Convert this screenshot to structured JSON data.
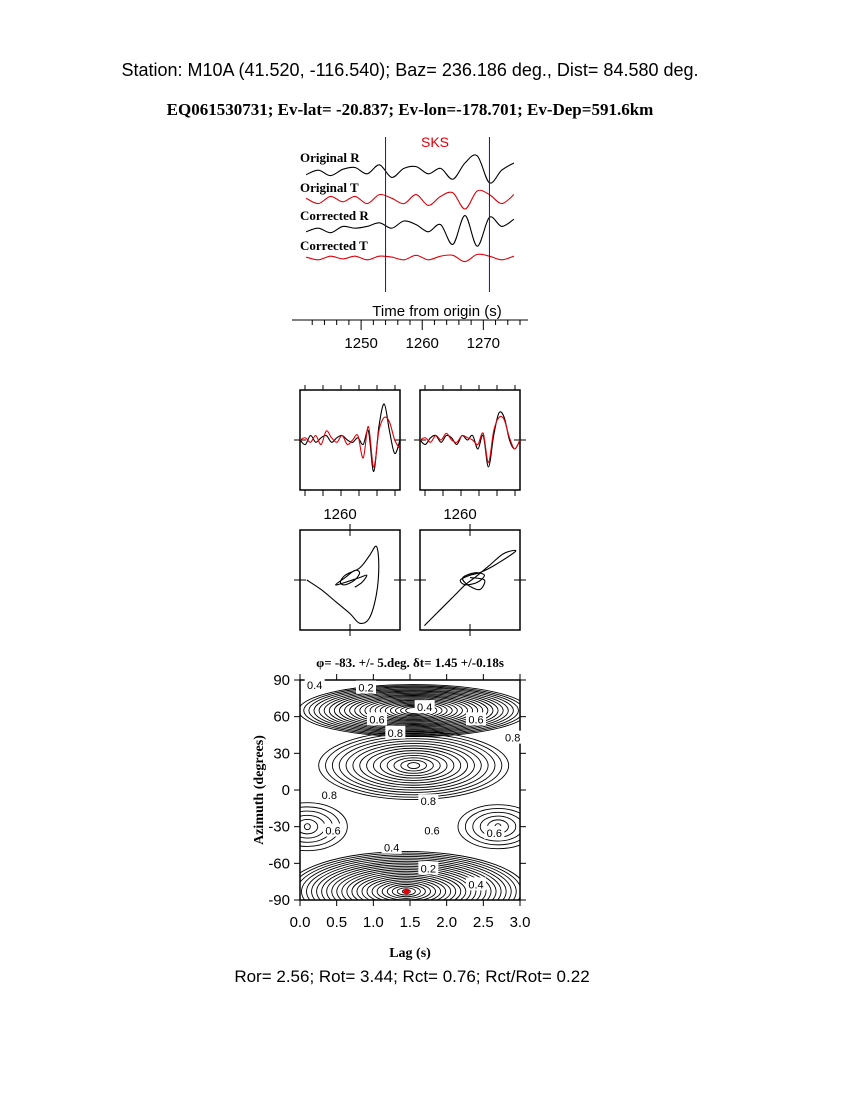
{
  "header": {
    "station_line": "Station: M10A (41.520, -116.540); Baz=  236.186 deg., Dist=   84.580 deg.",
    "event_line": "EQ061530731; Ev-lat= -20.837; Ev-lon=-178.701; Ev-Dep=591.6km"
  },
  "colors": {
    "radial": "#000000",
    "transverse": "#e0000a",
    "phase_marker": "#1010c0",
    "best_point": "#e0000a"
  },
  "chart_data": [
    {
      "type": "line",
      "panel": "seismograms",
      "phase_label": "SKS",
      "xlabel": "Time from origin (s)",
      "xticks": [
        "1250",
        "1260",
        "1270"
      ],
      "xlim": [
        1240,
        1276
      ],
      "window_markers": [
        1254,
        1271
      ],
      "series": [
        {
          "name": "Original R",
          "color": "#000000",
          "x": [
            1241,
            1243,
            1245,
            1247,
            1249,
            1251,
            1253,
            1255,
            1257,
            1259,
            1261,
            1263,
            1265,
            1267,
            1269,
            1271,
            1273,
            1275
          ],
          "y": [
            -0.15,
            0.1,
            -0.2,
            0.15,
            0.25,
            -0.1,
            0.4,
            -0.3,
            0.2,
            0.3,
            -0.1,
            0.2,
            -0.4,
            0.5,
            0.9,
            -0.6,
            0.1,
            0.5
          ]
        },
        {
          "name": "Original T",
          "color": "#e0000a",
          "x": [
            1241,
            1243,
            1245,
            1247,
            1249,
            1251,
            1253,
            1255,
            1257,
            1259,
            1261,
            1263,
            1265,
            1267,
            1269,
            1271,
            1273,
            1275
          ],
          "y": [
            0.1,
            -0.2,
            0.2,
            -0.1,
            0.2,
            -0.2,
            0.3,
            0.1,
            -0.2,
            0.3,
            -0.3,
            0.2,
            0.4,
            -0.5,
            0.5,
            0.3,
            -0.2,
            0.3
          ]
        },
        {
          "name": "Corrected R",
          "color": "#000000",
          "x": [
            1241,
            1243,
            1245,
            1247,
            1249,
            1251,
            1253,
            1255,
            1257,
            1259,
            1261,
            1263,
            1265,
            1267,
            1269,
            1271,
            1273,
            1275
          ],
          "y": [
            -0.1,
            0.1,
            -0.15,
            0.2,
            0.1,
            0.2,
            0.4,
            0.1,
            0.5,
            0.3,
            -0.1,
            0.3,
            -0.8,
            0.8,
            -0.9,
            0.7,
            0.2,
            0.6
          ]
        },
        {
          "name": "Corrected T",
          "color": "#e0000a",
          "x": [
            1241,
            1243,
            1245,
            1247,
            1249,
            1251,
            1253,
            1255,
            1257,
            1259,
            1261,
            1263,
            1265,
            1267,
            1269,
            1271,
            1273,
            1275
          ],
          "y": [
            0.05,
            -0.1,
            0.1,
            -0.05,
            0.1,
            -0.1,
            0.1,
            0.05,
            -0.1,
            0.15,
            -0.1,
            0.1,
            0.15,
            -0.2,
            0.2,
            0.1,
            -0.1,
            0.1
          ]
        }
      ]
    },
    {
      "type": "line",
      "panel": "waveform-before",
      "xticks": [
        "1260"
      ],
      "series": [
        {
          "name": "",
          "color": "#000000",
          "y": [
            0,
            -0.1,
            0.1,
            -0.05,
            0.05,
            0.1,
            -0.05,
            0.05,
            0.1,
            0,
            -0.05,
            0.05,
            -0.1,
            0.2,
            -0.7,
            0.3,
            0.8,
            0.2,
            -0.3,
            0
          ]
        },
        {
          "name": "",
          "color": "#e0000a",
          "y": [
            0,
            0.05,
            -0.05,
            0.1,
            -0.1,
            0.2,
            0.05,
            -0.05,
            0.1,
            -0.1,
            0,
            0.1,
            -0.4,
            0.3,
            -0.6,
            0.2,
            0.5,
            0.4,
            0,
            -0.2
          ]
        }
      ]
    },
    {
      "type": "line",
      "panel": "waveform-after",
      "xticks": [
        "1260"
      ],
      "series": [
        {
          "name": "",
          "color": "#000000",
          "y": [
            0,
            -0.1,
            0.05,
            0.1,
            -0.05,
            0.1,
            0.05,
            -0.1,
            0.1,
            0,
            0.1,
            -0.2,
            0.1,
            -0.6,
            0.1,
            0.6,
            0.5,
            0,
            -0.2,
            0
          ]
        },
        {
          "name": "",
          "color": "#e0000a",
          "y": [
            0,
            0.05,
            -0.05,
            0.1,
            0,
            0.15,
            0,
            -0.05,
            0.1,
            0.05,
            0,
            -0.1,
            0.15,
            -0.5,
            0.2,
            0.5,
            0.45,
            0.05,
            -0.2,
            0
          ]
        }
      ]
    },
    {
      "type": "scatter",
      "panel": "particle-motion-before",
      "x": [
        -0.9,
        -0.6,
        -0.3,
        0,
        0.2,
        0.4,
        0.55,
        0.6,
        0.55,
        0.4,
        0.2,
        -0.1,
        -0.2,
        -0.1,
        0.1,
        0.2,
        0.1,
        -0.1,
        -0.3,
        -0.1,
        0.2,
        0.35,
        0.25,
        0.1
      ],
      "y": [
        0.0,
        -0.2,
        -0.45,
        -0.7,
        -0.9,
        -0.8,
        -0.3,
        0.3,
        0.7,
        0.5,
        0.25,
        0.1,
        -0.05,
        -0.1,
        0,
        0.15,
        0.2,
        0.05,
        -0.1,
        -0.05,
        0.05,
        0.1,
        -0.05,
        -0.15
      ]
    },
    {
      "type": "scatter",
      "panel": "particle-motion-after",
      "x": [
        -0.95,
        -0.6,
        -0.3,
        -0.1,
        0.1,
        0.4,
        0.7,
        0.95,
        0.5,
        0.2,
        0.0,
        -0.2,
        -0.1,
        0.15,
        0.3,
        0.1,
        -0.15,
        -0.05,
        0.2,
        0.3,
        0.0
      ],
      "y": [
        -0.95,
        -0.6,
        -0.3,
        -0.1,
        0.05,
        0.3,
        0.55,
        0.6,
        0.3,
        0.15,
        0.1,
        0.0,
        -0.1,
        -0.05,
        0.1,
        0.15,
        0.05,
        -0.1,
        -0.2,
        0.0,
        0.05
      ]
    },
    {
      "type": "heatmap",
      "panel": "misfit-grid",
      "title": "φ= -83. +/- 5.deg. δt= 1.45 +/-0.18s",
      "xlabel": "Lag (s)",
      "ylabel": "Azimuth (degrees)",
      "xlim": [
        0,
        3
      ],
      "ylim": [
        -90,
        90
      ],
      "xticks": [
        "0.0",
        "0.5",
        "1.0",
        "1.5",
        "2.0",
        "2.5",
        "3.0"
      ],
      "yticks": [
        "90",
        "60",
        "30",
        "0",
        "-30",
        "-60",
        "-90"
      ],
      "best_point": {
        "x": 1.45,
        "y": -83
      },
      "contour_labels": [
        {
          "text": "0.4",
          "x": 0.2,
          "y": 85
        },
        {
          "text": "0.2",
          "x": 0.9,
          "y": 83
        },
        {
          "text": "0.4",
          "x": 1.7,
          "y": 67
        },
        {
          "text": "0.6",
          "x": 1.05,
          "y": 57
        },
        {
          "text": "0.6",
          "x": 2.4,
          "y": 57
        },
        {
          "text": "0.8",
          "x": 1.3,
          "y": 46
        },
        {
          "text": "0.8",
          "x": 2.9,
          "y": 42
        },
        {
          "text": "0.8",
          "x": 0.4,
          "y": -5
        },
        {
          "text": "0.8",
          "x": 1.75,
          "y": -10
        },
        {
          "text": "0.6",
          "x": 0.45,
          "y": -34
        },
        {
          "text": "0.6",
          "x": 1.8,
          "y": -34
        },
        {
          "text": "0.6",
          "x": 2.65,
          "y": -36
        },
        {
          "text": "0.4",
          "x": 1.25,
          "y": -48
        },
        {
          "text": "0.2",
          "x": 1.75,
          "y": -65
        },
        {
          "text": "0.4",
          "x": 2.4,
          "y": -78
        }
      ]
    }
  ],
  "footer": {
    "ratios": "Ror= 2.56; Rot= 3.44; Rct= 0.76; Rct/Rot= 0.22"
  }
}
